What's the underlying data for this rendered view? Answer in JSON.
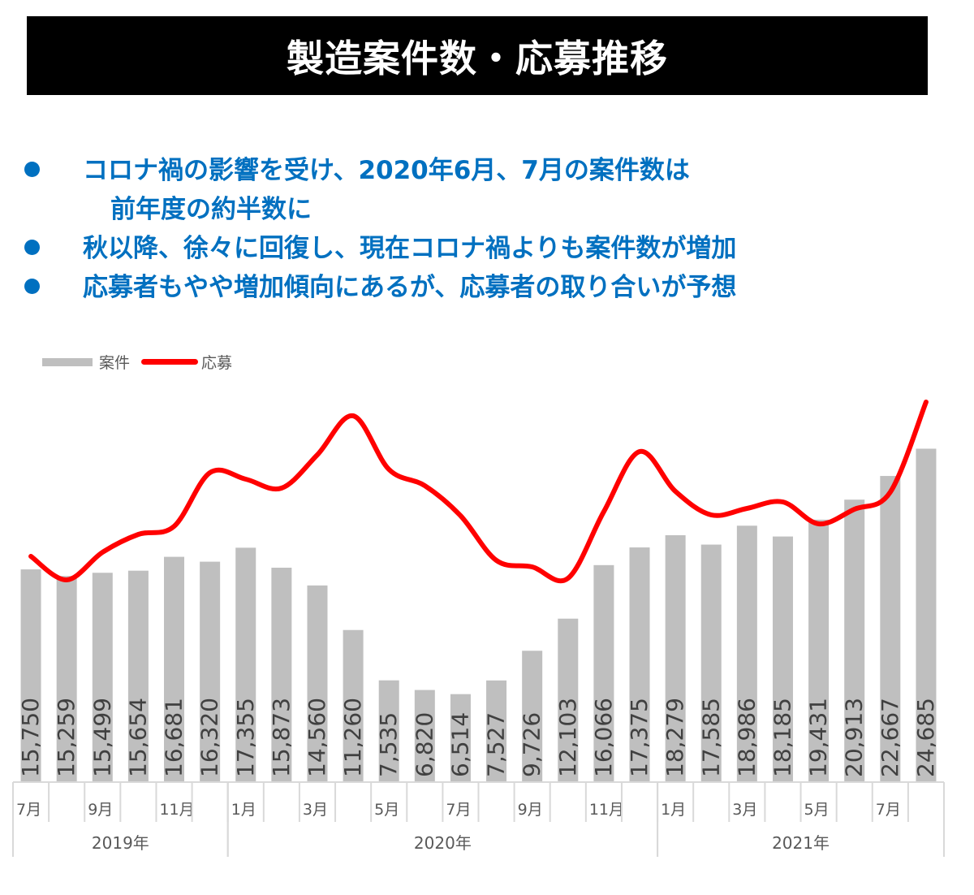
{
  "title": "製造案件数・応募推移",
  "bullets": [
    {
      "line1": "コロナ禍の影響を受け、2020年6月、7月の案件数は",
      "line2": "前年度の約半数に"
    },
    {
      "line1": "秋以降、徐々に回復し、現在コロナ禍よりも案件数が増加",
      "line2": ""
    },
    {
      "line1": "応募者もやや増加傾向にあるが、応募者の取り合いが予想",
      "line2": ""
    }
  ],
  "colors": {
    "bar": "#bfbfbf",
    "line": "#ff0000",
    "bullet": "#0070c0",
    "title_bg": "#000000"
  },
  "chart_data": {
    "type": "bar+line",
    "title": "製造案件数・応募推移",
    "legend": [
      "案件",
      "応募"
    ],
    "legend_position": "top-left",
    "x": [
      "2019-07",
      "2019-08",
      "2019-09",
      "2019-10",
      "2019-11",
      "2019-12",
      "2020-01",
      "2020-02",
      "2020-03",
      "2020-04",
      "2020-05",
      "2020-06",
      "2020-07",
      "2020-08",
      "2020-09",
      "2020-10",
      "2020-11",
      "2020-12",
      "2021-01",
      "2021-02",
      "2021-03",
      "2021-04",
      "2021-05",
      "2021-06",
      "2021-07",
      "2021-08"
    ],
    "month_tick_labels": [
      "7月",
      "",
      "9月",
      "",
      "11月",
      "",
      "1月",
      "",
      "3月",
      "",
      "5月",
      "",
      "7月",
      "",
      "9月",
      "",
      "11月",
      "",
      "1月",
      "",
      "3月",
      "",
      "5月",
      "",
      "7月",
      ""
    ],
    "year_groups": [
      {
        "label": "2019年",
        "start": 0,
        "count": 6
      },
      {
        "label": "2020年",
        "start": 6,
        "count": 12
      },
      {
        "label": "2021年",
        "start": 18,
        "count": 8
      }
    ],
    "series": [
      {
        "name": "案件",
        "type": "bar",
        "values": [
          15750,
          15259,
          15499,
          15654,
          16681,
          16320,
          17355,
          15873,
          14560,
          11260,
          7535,
          6820,
          6514,
          7527,
          9726,
          12103,
          16066,
          17375,
          18279,
          17585,
          18986,
          18185,
          19431,
          20913,
          22667,
          24685
        ]
      },
      {
        "name": "応募",
        "type": "line",
        "note": "no axis shown; relative y-pixel positions",
        "relative_values": [
          685,
          714,
          680,
          658,
          648,
          582,
          590,
          601,
          560,
          512,
          578,
          598,
          635,
          690,
          698,
          712,
          630,
          556,
          605,
          634,
          626,
          618,
          645,
          627,
          606,
          495
        ]
      }
    ],
    "data_labels": [
      "15,750",
      "15,259",
      "15,499",
      "15,654",
      "16,681",
      "16,320",
      "17,355",
      "15,873",
      "14,560",
      "11,260",
      "7,535",
      "6,820",
      "6,514",
      "7,527",
      "9,726",
      "12,103",
      "16,066",
      "17,375",
      "18,279",
      "17,585",
      "18,986",
      "18,185",
      "19,431",
      "20,913",
      "22,667",
      "24,685"
    ],
    "grid": false,
    "xlabel": "",
    "ylabel": ""
  }
}
